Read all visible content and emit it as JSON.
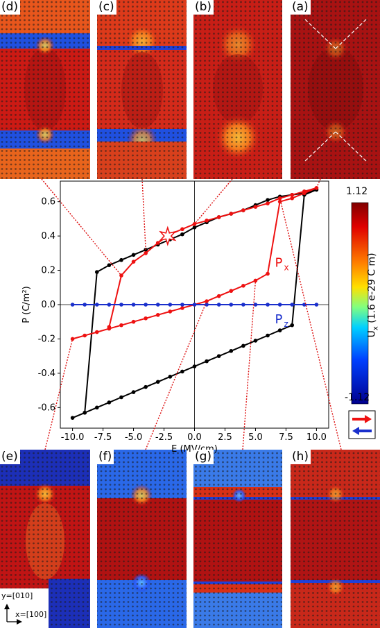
{
  "panels": [
    {
      "id": "d",
      "label": "(d)"
    },
    {
      "id": "c",
      "label": "(c)"
    },
    {
      "id": "b",
      "label": "(b)"
    },
    {
      "id": "a",
      "label": "(a)"
    },
    {
      "id": "e",
      "label": "(e)"
    },
    {
      "id": "f",
      "label": "(f)"
    },
    {
      "id": "g",
      "label": "(g)"
    },
    {
      "id": "h",
      "label": "(h)"
    }
  ],
  "colorbar": {
    "label": "U",
    "label_sub": "x",
    "label_rest": " (1.6 e-29 C m)",
    "max_label": "1.12",
    "min_label": "-1.12"
  },
  "axes_labels": {
    "x": "[100]",
    "y": "[010]"
  },
  "chart_data": {
    "type": "line",
    "xlabel": "E (MV/cm)",
    "ylabel": "P (C/m²)",
    "xlim": [
      -11,
      11
    ],
    "ylim": [
      -0.72,
      0.72
    ],
    "xticks": [
      -10.0,
      -7.5,
      -5.0,
      -2.5,
      0.0,
      2.5,
      5.0,
      7.5,
      10.0
    ],
    "xtick_labels": [
      "-10.0",
      "-7.5",
      "-5.0",
      "-2.5",
      "0.0",
      "2.5",
      "5.0",
      "7.5",
      "10.0"
    ],
    "yticks": [
      -0.6,
      -0.4,
      -0.2,
      0.0,
      0.2,
      0.4,
      0.6
    ],
    "ytick_labels": [
      "-0.6",
      "-0.4",
      "-0.2",
      "0.0",
      "0.2",
      "0.4",
      "0.6"
    ],
    "colors": {
      "black": "#000000",
      "red": "#ee1111",
      "blue": "#1a2fcc"
    },
    "series": [
      {
        "name": "",
        "color": "black",
        "x": [
          -10,
          -9,
          -8,
          -7,
          -6,
          -5,
          -4,
          -3,
          -2,
          -1,
          0,
          1,
          2,
          3,
          4,
          5,
          6,
          7,
          8,
          9,
          10
        ],
        "y": [
          -0.66,
          -0.63,
          -0.6,
          -0.57,
          -0.54,
          -0.51,
          -0.48,
          -0.45,
          -0.42,
          -0.39,
          -0.36,
          -0.33,
          -0.3,
          -0.27,
          -0.24,
          -0.21,
          -0.18,
          -0.15,
          -0.12,
          0.64,
          0.67
        ]
      },
      {
        "name": "",
        "color": "black",
        "x": [
          10,
          9,
          8,
          7,
          6,
          5,
          4,
          3,
          2,
          1,
          0,
          -1,
          -2,
          -3,
          -4,
          -5,
          -6,
          -7,
          -8,
          -9
        ],
        "y": [
          0.67,
          0.65,
          0.64,
          0.63,
          0.61,
          0.58,
          0.55,
          0.53,
          0.51,
          0.48,
          0.45,
          0.41,
          0.38,
          0.35,
          0.32,
          0.29,
          0.26,
          0.23,
          0.19,
          -0.63
        ]
      },
      {
        "name": "Px",
        "color": "red",
        "x": [
          -10,
          -9,
          -8,
          -7,
          -6,
          -5,
          -4,
          -3,
          -2,
          -1,
          0,
          1,
          2,
          3,
          4,
          5,
          6,
          7,
          8,
          9,
          10
        ],
        "y": [
          -0.2,
          -0.18,
          -0.16,
          -0.14,
          -0.12,
          -0.1,
          -0.08,
          -0.06,
          -0.04,
          -0.02,
          0.0,
          0.02,
          0.05,
          0.08,
          0.11,
          0.14,
          0.18,
          0.6,
          0.62,
          0.65,
          0.68
        ]
      },
      {
        "name": "",
        "color": "red",
        "x": [
          10,
          9,
          8,
          7,
          6,
          5,
          4,
          3,
          2,
          1,
          0,
          -1,
          -2,
          -3,
          -4,
          -5,
          -6,
          -7
        ],
        "y": [
          0.68,
          0.66,
          0.64,
          0.62,
          0.59,
          0.57,
          0.55,
          0.53,
          0.51,
          0.49,
          0.47,
          0.44,
          0.41,
          0.36,
          0.3,
          0.25,
          0.17,
          -0.13
        ]
      },
      {
        "name": "Pz",
        "color": "blue",
        "x": [
          -10,
          -9,
          -8,
          -7,
          -6,
          -5,
          -4,
          -3,
          -2,
          -1,
          0,
          1,
          2,
          3,
          4,
          5,
          6,
          7,
          8,
          9,
          10
        ],
        "y": [
          0,
          0,
          0,
          0,
          0,
          0,
          0,
          0,
          0,
          0,
          0,
          0,
          0,
          0,
          0,
          0,
          0,
          0,
          0,
          0,
          0
        ]
      }
    ],
    "series_labels": [
      {
        "text": "P",
        "sub": "x",
        "color": "red"
      },
      {
        "text": "P",
        "sub": "z",
        "color": "blue"
      }
    ],
    "star_marker": {
      "x": -2.2,
      "y": 0.4
    }
  }
}
